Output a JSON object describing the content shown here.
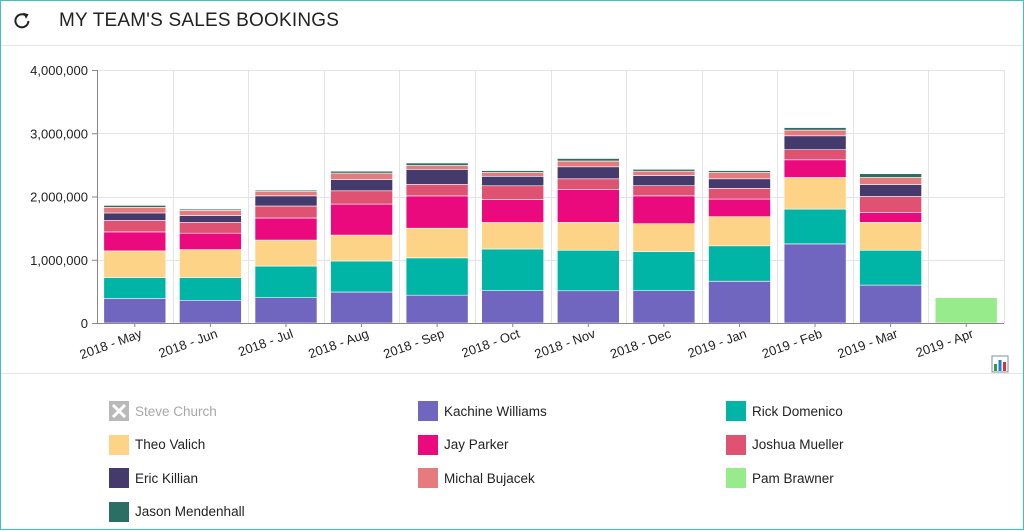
{
  "header": {
    "title": "MY TEAM'S SALES BOOKINGS",
    "refresh_icon": "refresh-icon"
  },
  "toolbar": {
    "chart_type_icon": "bar-chart-icon"
  },
  "chart_data": {
    "type": "bar",
    "stacked": true,
    "categories": [
      "2018 - May",
      "2018 - Jun",
      "2018 - Jul",
      "2018 - Aug",
      "2018 - Sep",
      "2018 - Oct",
      "2018 - Nov",
      "2018 - Dec",
      "2019 - Jan",
      "2019 - Feb",
      "2019 - Mar",
      "2019 - Apr"
    ],
    "ylim": [
      0,
      4000000
    ],
    "yticks": [
      0,
      1000000,
      2000000,
      3000000,
      4000000
    ],
    "ytick_labels": [
      "0",
      "1,000,000",
      "2,000,000",
      "3,000,000",
      "4,000,000"
    ],
    "grid": true,
    "legend_position": "bottom",
    "series": [
      {
        "name": "Kachine Williams",
        "color": "#7166bf",
        "values": [
          390000,
          360000,
          400000,
          490000,
          440000,
          510000,
          510000,
          510000,
          660000,
          1250000,
          600000,
          0
        ]
      },
      {
        "name": "Rick Domenico",
        "color": "#00b5a5",
        "values": [
          330000,
          360000,
          500000,
          490000,
          590000,
          660000,
          640000,
          620000,
          560000,
          550000,
          550000,
          0
        ]
      },
      {
        "name": "Theo Valich",
        "color": "#fdd487",
        "values": [
          420000,
          440000,
          410000,
          410000,
          470000,
          420000,
          440000,
          440000,
          460000,
          500000,
          440000,
          0
        ]
      },
      {
        "name": "Jay Parker",
        "color": "#eb0a7e",
        "values": [
          300000,
          260000,
          350000,
          490000,
          510000,
          360000,
          520000,
          440000,
          280000,
          280000,
          160000,
          0
        ]
      },
      {
        "name": "Joshua Mueller",
        "color": "#e05271",
        "values": [
          180000,
          170000,
          190000,
          210000,
          180000,
          220000,
          170000,
          160000,
          170000,
          160000,
          250000,
          0
        ]
      },
      {
        "name": "Eric Killian",
        "color": "#443a6c",
        "values": [
          120000,
          110000,
          160000,
          180000,
          240000,
          150000,
          190000,
          160000,
          150000,
          220000,
          190000,
          0
        ]
      },
      {
        "name": "Michal Bujacek",
        "color": "#e57b7d",
        "values": [
          90000,
          80000,
          70000,
          100000,
          60000,
          60000,
          90000,
          70000,
          100000,
          90000,
          110000,
          0
        ]
      },
      {
        "name": "Pam Brawner",
        "color": "#98eb8a",
        "values": [
          0,
          0,
          0,
          0,
          0,
          0,
          0,
          0,
          0,
          0,
          0,
          400000
        ]
      },
      {
        "name": "Jason Mendenhall",
        "color": "#2c6e63",
        "values": [
          30000,
          20000,
          20000,
          30000,
          40000,
          30000,
          40000,
          30000,
          30000,
          40000,
          60000,
          0
        ]
      }
    ]
  },
  "legend": [
    {
      "name": "Steve Church",
      "color": "#b9b9b9",
      "disabled": true,
      "icon": "close-icon"
    },
    {
      "name": "Kachine Williams",
      "color": "#7166bf"
    },
    {
      "name": "Rick Domenico",
      "color": "#00b5a5"
    },
    {
      "name": "Theo Valich",
      "color": "#fdd487"
    },
    {
      "name": "Jay Parker",
      "color": "#eb0a7e"
    },
    {
      "name": "Joshua Mueller",
      "color": "#e05271"
    },
    {
      "name": "Eric Killian",
      "color": "#443a6c"
    },
    {
      "name": "Michal Bujacek",
      "color": "#e57b7d"
    },
    {
      "name": "Pam Brawner",
      "color": "#98eb8a"
    },
    {
      "name": "Jason Mendenhall",
      "color": "#2c6e63"
    }
  ]
}
